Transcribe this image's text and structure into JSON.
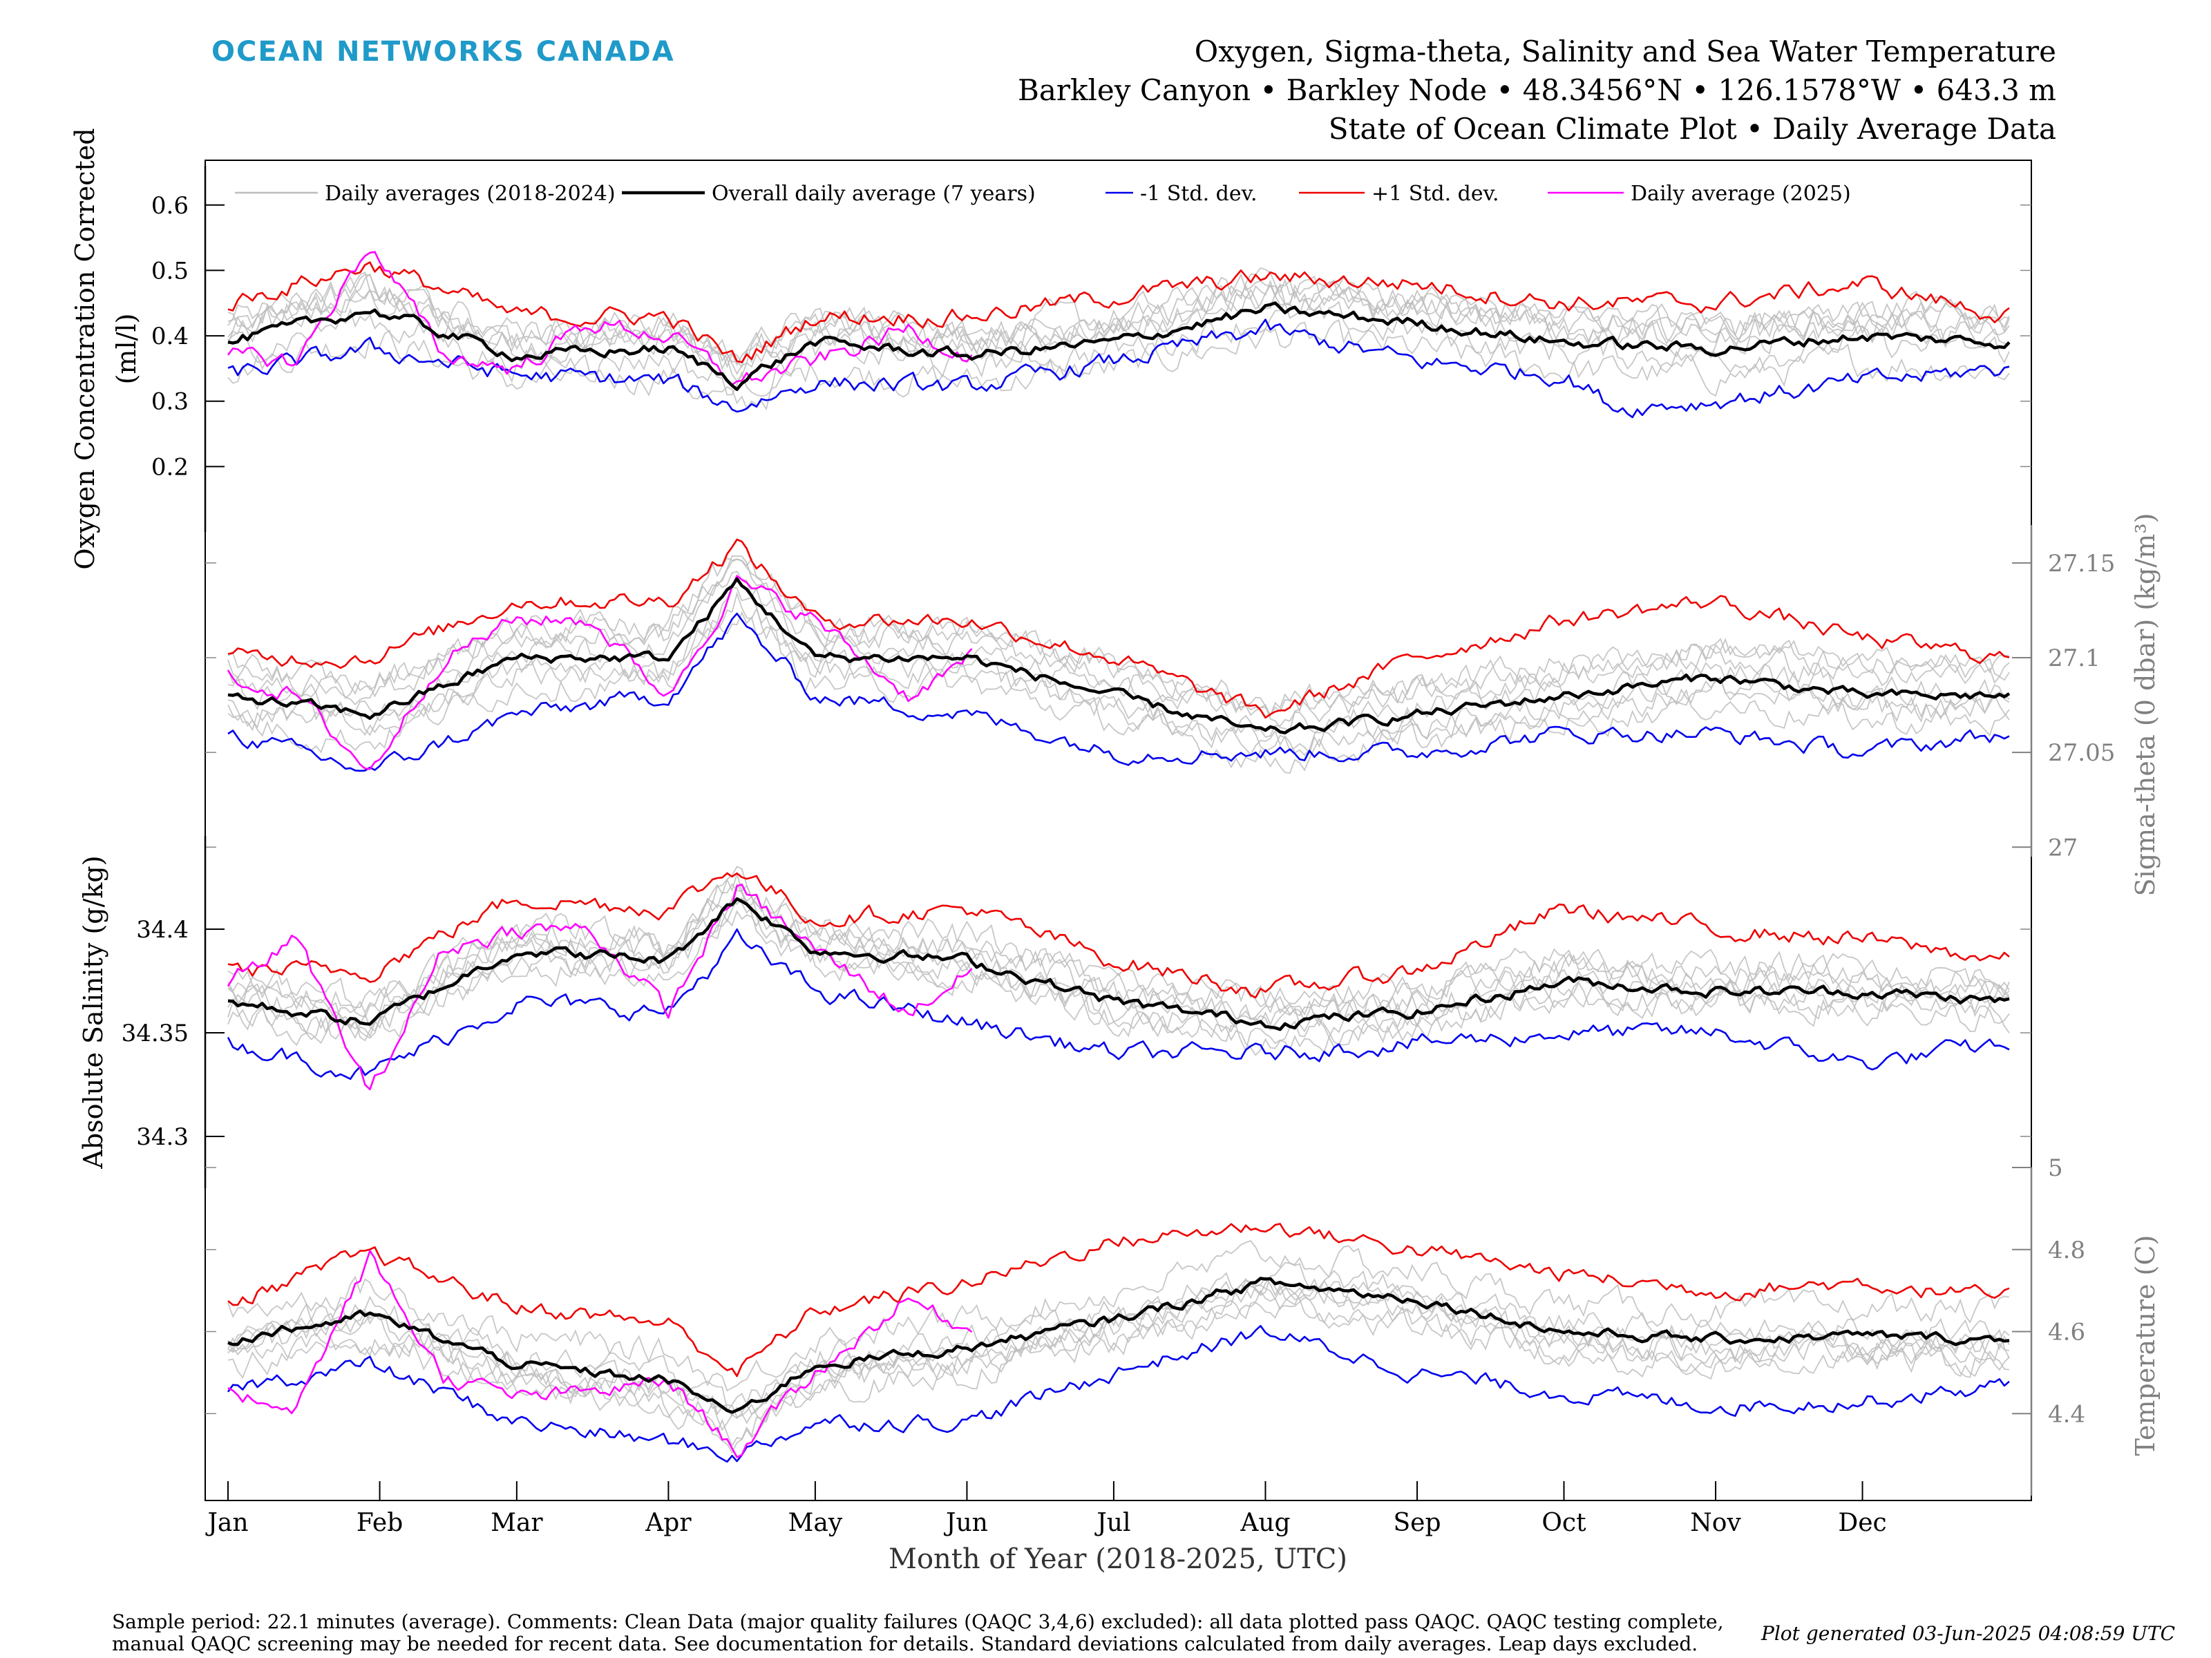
{
  "header": {
    "brand": "OCEAN NETWORKS CANADA",
    "title_line1": "Oxygen, Sigma-theta, Salinity and Sea Water Temperature",
    "title_line2": "Barkley Canyon • Barkley Node • 48.3456°N • 126.1578°W • 643.3 m",
    "title_line3": "State of Ocean Climate Plot • Daily Average Data"
  },
  "footer": {
    "note_line1": "Sample period: 22.1 minutes (average). Comments: Clean Data (major quality failures (QAQC 3,4,6) excluded): all data plotted pass QAQC. QAQC testing complete,",
    "note_line2": "manual QAQC screening may be needed for recent data. See documentation for details. Standard deviations calculated from daily averages. Leap days excluded.",
    "generated": "Plot generated 03-Jun-2025 04:08:59 UTC"
  },
  "chart_data": {
    "type": "line",
    "xlabel": "Month of Year (2018-2025, UTC)",
    "categories": [
      "Jan",
      "Feb",
      "Mar",
      "Apr",
      "May",
      "Jun",
      "Jul",
      "Aug",
      "Sep",
      "Oct",
      "Nov",
      "Dec"
    ],
    "legend": {
      "placement": "top",
      "entries": [
        {
          "label": "Daily averages (2018-2024)",
          "color": "#bdbdbd"
        },
        {
          "label": "Overall daily average (7 years)",
          "color": "#000000"
        },
        {
          "label": "-1 Std. dev.",
          "color": "#0000ee"
        },
        {
          "label": "+1 Std. dev.",
          "color": "#ee0000"
        },
        {
          "label": "Daily average (2025)",
          "color": "#ff00ff"
        }
      ]
    },
    "colors": {
      "years": "#bdbdbd",
      "mean": "#000000",
      "minus_sd": "#0000ee",
      "plus_sd": "#ee0000",
      "current": "#ff00ff",
      "right_axis": "#808080"
    },
    "panels": [
      {
        "name": "oxygen",
        "ylabel_line1": "Oxygen Concentration Corrected",
        "ylabel_line2": "(ml/l)",
        "axis_side": "left",
        "ylim": [
          0.1,
          0.66
        ],
        "ticks": [
          0.2,
          0.3,
          0.4,
          0.5,
          0.6
        ],
        "tick_labels": [
          "0.2",
          "0.3",
          "0.4",
          "0.5",
          "0.6"
        ],
        "series": [
          {
            "name": "Overall daily average (7 years)",
            "key": "mean",
            "x": [
              1,
              30,
              60,
              91,
              105,
              121,
              152,
              182,
              213,
              244,
              274,
              305,
              335,
              365
            ],
            "y": [
              0.39,
              0.44,
              0.37,
              0.38,
              0.33,
              0.39,
              0.37,
              0.39,
              0.44,
              0.42,
              0.39,
              0.38,
              0.4,
              0.39
            ]
          },
          {
            "name": "-1 Std. dev.",
            "key": "minus_sd",
            "x": [
              1,
              30,
              60,
              91,
              105,
              121,
              152,
              182,
              213,
              244,
              274,
              285,
              305,
              335,
              365
            ],
            "y": [
              0.34,
              0.38,
              0.34,
              0.33,
              0.29,
              0.33,
              0.32,
              0.36,
              0.41,
              0.36,
              0.34,
              0.29,
              0.3,
              0.33,
              0.35
            ]
          },
          {
            "name": "+1 Std. dev.",
            "key": "plus_sd",
            "x": [
              1,
              30,
              60,
              91,
              105,
              121,
              152,
              182,
              213,
              244,
              274,
              305,
              335,
              365
            ],
            "y": [
              0.45,
              0.51,
              0.43,
              0.43,
              0.36,
              0.43,
              0.43,
              0.46,
              0.49,
              0.48,
              0.45,
              0.45,
              0.48,
              0.43
            ]
          },
          {
            "name": "Daily average (2025)",
            "key": "current",
            "x": [
              1,
              15,
              30,
              45,
              60,
              75,
              91,
              105,
              121,
              140,
              153
            ],
            "y": [
              0.37,
              0.36,
              0.54,
              0.37,
              0.35,
              0.42,
              0.4,
              0.33,
              0.36,
              0.41,
              0.37
            ]
          }
        ]
      },
      {
        "name": "sigma_theta",
        "ylabel": "Sigma-theta (0 dbar) (kg/m³)",
        "axis_side": "right",
        "ylim": [
          26.995,
          27.17
        ],
        "ticks": [
          27.0,
          27.05,
          27.1,
          27.15
        ],
        "tick_labels": [
          "27",
          "27.05",
          "27.1",
          "27.15"
        ],
        "series": [
          {
            "name": "Overall daily average (7 years)",
            "key": "mean",
            "x": [
              1,
              30,
              60,
              91,
              105,
              121,
              152,
              182,
              213,
              244,
              274,
              305,
              335,
              365
            ],
            "y": [
              27.08,
              27.07,
              27.1,
              27.1,
              27.14,
              27.1,
              27.1,
              27.08,
              27.06,
              27.07,
              27.08,
              27.09,
              27.08,
              27.08
            ]
          },
          {
            "name": "-1 Std. dev.",
            "key": "minus_sd",
            "x": [
              1,
              30,
              60,
              91,
              105,
              121,
              152,
              182,
              213,
              244,
              274,
              305,
              335,
              365
            ],
            "y": [
              27.06,
              27.04,
              27.07,
              27.08,
              27.12,
              27.08,
              27.07,
              27.05,
              27.05,
              27.05,
              27.06,
              27.06,
              27.05,
              27.06
            ]
          },
          {
            "name": "+1 Std. dev.",
            "key": "plus_sd",
            "x": [
              1,
              30,
              60,
              91,
              105,
              121,
              152,
              182,
              213,
              244,
              274,
              305,
              335,
              365
            ],
            "y": [
              27.1,
              27.1,
              27.13,
              27.13,
              27.16,
              27.12,
              27.12,
              27.1,
              27.07,
              27.1,
              27.12,
              27.13,
              27.11,
              27.1
            ]
          },
          {
            "name": "Daily average (2025)",
            "key": "current",
            "x": [
              1,
              15,
              30,
              45,
              60,
              75,
              91,
              105,
              121,
              140,
              153
            ],
            "y": [
              27.09,
              27.08,
              27.04,
              27.1,
              27.12,
              27.12,
              27.08,
              27.14,
              27.12,
              27.08,
              27.1
            ]
          }
        ]
      },
      {
        "name": "salinity",
        "ylabel": "Absolute Salinity (g/kg)",
        "axis_side": "left",
        "ylim": [
          34.275,
          34.445
        ],
        "ticks": [
          34.3,
          34.35,
          34.4
        ],
        "tick_labels": [
          "34.3",
          "34.35",
          "34.4"
        ],
        "series": [
          {
            "name": "Overall daily average (7 years)",
            "key": "mean",
            "x": [
              1,
              30,
              60,
              91,
              105,
              121,
              152,
              182,
              213,
              244,
              274,
              305,
              335,
              365
            ],
            "y": [
              34.365,
              34.355,
              34.39,
              34.385,
              34.415,
              34.39,
              34.385,
              34.365,
              34.355,
              34.36,
              34.375,
              34.37,
              34.37,
              34.365
            ]
          },
          {
            "name": "-1 Std. dev.",
            "key": "minus_sd",
            "x": [
              1,
              30,
              60,
              91,
              105,
              121,
              152,
              182,
              213,
              244,
              274,
              305,
              335,
              365
            ],
            "y": [
              34.345,
              34.33,
              34.365,
              34.36,
              34.395,
              34.37,
              34.355,
              34.34,
              34.34,
              34.345,
              34.35,
              34.35,
              34.335,
              34.345
            ]
          },
          {
            "name": "+1 Std. dev.",
            "key": "plus_sd",
            "x": [
              1,
              30,
              60,
              91,
              105,
              121,
              152,
              182,
              213,
              244,
              274,
              305,
              335,
              365
            ],
            "y": [
              34.38,
              34.38,
              34.415,
              34.41,
              34.43,
              34.405,
              34.41,
              34.385,
              34.37,
              34.38,
              34.41,
              34.4,
              34.395,
              34.385
            ]
          },
          {
            "name": "Daily average (2025)",
            "key": "current",
            "x": [
              1,
              15,
              30,
              45,
              60,
              75,
              91,
              105,
              121,
              140,
              153
            ],
            "y": [
              34.375,
              34.395,
              34.32,
              34.39,
              34.4,
              34.4,
              34.36,
              34.42,
              34.39,
              34.36,
              34.38
            ]
          }
        ]
      },
      {
        "name": "temperature",
        "ylabel": "Temperature (C)",
        "axis_side": "right",
        "ylim": [
          4.2,
          5.0
        ],
        "ticks": [
          4.4,
          4.6,
          4.8,
          5.0
        ],
        "tick_labels": [
          "4.4",
          "4.6",
          "4.8",
          "5"
        ],
        "series": [
          {
            "name": "Overall daily average (7 years)",
            "key": "mean",
            "x": [
              1,
              30,
              60,
              91,
              105,
              121,
              152,
              182,
              213,
              244,
              274,
              305,
              335,
              365
            ],
            "y": [
              4.58,
              4.64,
              4.52,
              4.48,
              4.4,
              4.52,
              4.56,
              4.63,
              4.72,
              4.68,
              4.6,
              4.58,
              4.59,
              4.58
            ]
          },
          {
            "name": "-1 Std. dev.",
            "key": "minus_sd",
            "x": [
              1,
              30,
              60,
              91,
              105,
              121,
              152,
              182,
              213,
              244,
              274,
              305,
              335,
              365
            ],
            "y": [
              4.46,
              4.52,
              4.38,
              4.33,
              4.3,
              4.38,
              4.38,
              4.5,
              4.6,
              4.5,
              4.45,
              4.42,
              4.43,
              4.47
            ]
          },
          {
            "name": "+1 Std. dev.",
            "key": "plus_sd",
            "x": [
              1,
              30,
              60,
              91,
              105,
              121,
              152,
              182,
              213,
              244,
              274,
              305,
              335,
              365
            ],
            "y": [
              4.67,
              4.79,
              4.66,
              4.62,
              4.5,
              4.65,
              4.72,
              4.82,
              4.86,
              4.8,
              4.74,
              4.7,
              4.72,
              4.68
            ]
          },
          {
            "name": "Daily average (2025)",
            "key": "current",
            "x": [
              1,
              15,
              30,
              45,
              60,
              75,
              91,
              105,
              121,
              140,
              153
            ],
            "y": [
              4.45,
              4.42,
              4.78,
              4.49,
              4.44,
              4.45,
              4.48,
              4.31,
              4.5,
              4.68,
              4.6
            ]
          }
        ]
      }
    ]
  }
}
